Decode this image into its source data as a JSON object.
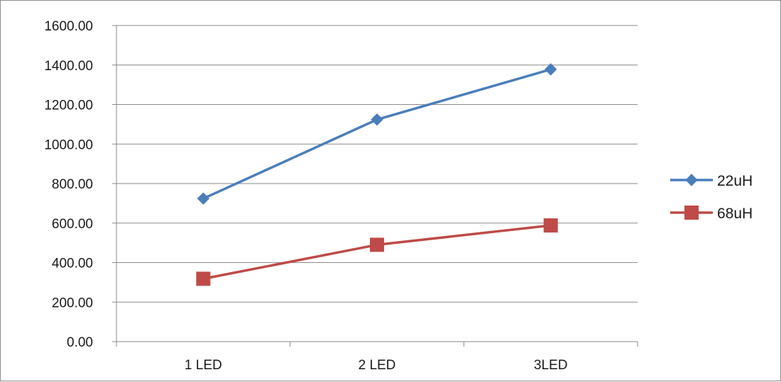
{
  "chart_data": {
    "type": "line",
    "title": "",
    "xlabel": "",
    "ylabel": "",
    "categories": [
      "1 LED",
      "2 LED",
      "3LED"
    ],
    "series": [
      {
        "name": "22uH",
        "values": [
          724,
          1124,
          1378
        ],
        "color": "#4a7ebb",
        "marker": "diamond"
      },
      {
        "name": "68uH",
        "values": [
          318,
          490,
          588
        ],
        "color": "#be4b48",
        "marker": "square"
      }
    ],
    "ylim": [
      0,
      1600
    ],
    "y_ticks": [
      "0.00",
      "200.00",
      "400.00",
      "600.00",
      "800.00",
      "1000.00",
      "1200.00",
      "1400.00",
      "1600.00"
    ],
    "grid": true,
    "legend_position": "right"
  }
}
